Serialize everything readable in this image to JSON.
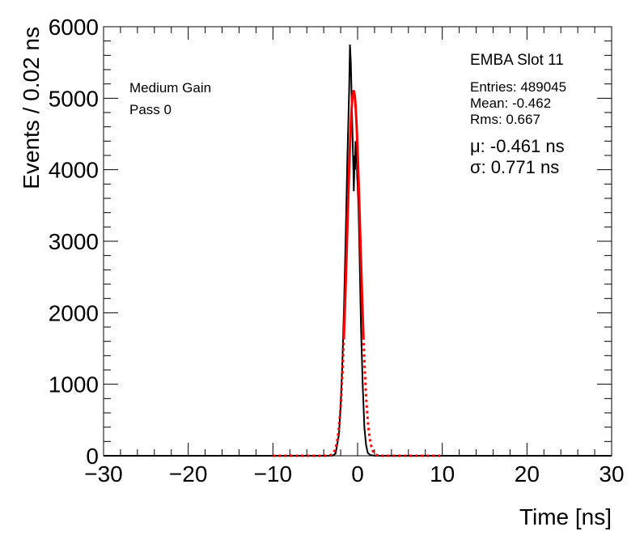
{
  "chart_data": {
    "type": "line",
    "title": "",
    "xlabel": "Time [ns]",
    "ylabel": "Events / 0.02 ns",
    "xlim": [
      -30,
      30
    ],
    "ylim": [
      0,
      6000
    ],
    "x_ticks": [
      -30,
      -20,
      -10,
      0,
      10,
      20,
      30
    ],
    "x_tick_labels": [
      "−30",
      "−20",
      "−10",
      "0",
      "10",
      "20",
      "30"
    ],
    "y_ticks": [
      0,
      1000,
      2000,
      3000,
      4000,
      5000,
      6000
    ],
    "y_tick_labels": [
      "0",
      "1000",
      "2000",
      "3000",
      "4000",
      "5000",
      "6000"
    ],
    "grid": false,
    "series": [
      {
        "color": "#000000",
        "style": "histogram",
        "x": [
          -30,
          -3.0,
          -2.6,
          -2.2,
          -2.0,
          -1.8,
          -1.6,
          -1.4,
          -1.2,
          -1.0,
          -0.9,
          -0.8,
          -0.7,
          -0.6,
          -0.5,
          -0.45,
          -0.4,
          -0.35,
          -0.3,
          -0.25,
          -0.2,
          -0.15,
          -0.1,
          -0.05,
          0.0,
          0.1,
          0.2,
          0.3,
          0.4,
          0.6,
          0.8,
          1.0,
          1.2,
          1.5,
          2.0,
          30
        ],
        "y": [
          0,
          0,
          30,
          300,
          700,
          1300,
          2100,
          3100,
          4200,
          5100,
          5750,
          5500,
          5000,
          4500,
          4000,
          3700,
          3900,
          4200,
          4000,
          4400,
          4100,
          4300,
          4200,
          3900,
          3800,
          3500,
          3000,
          2400,
          1800,
          1000,
          400,
          150,
          40,
          10,
          0,
          0
        ]
      },
      {
        "color": "#ff0000",
        "style": "gaussian-fit",
        "mu": -0.461,
        "sigma": 0.771,
        "amplitude": 5100,
        "x_range": [
          -10,
          10
        ]
      }
    ]
  },
  "annotations": {
    "left": [
      "Medium Gain",
      "Pass 0"
    ],
    "slot": "EMBA Slot 11",
    "stats": [
      "Entries: 489045",
      "Mean: -0.462",
      "Rms: 0.667"
    ],
    "fit": [
      "μ: -0.461 ns",
      "σ: 0.771 ns"
    ]
  }
}
